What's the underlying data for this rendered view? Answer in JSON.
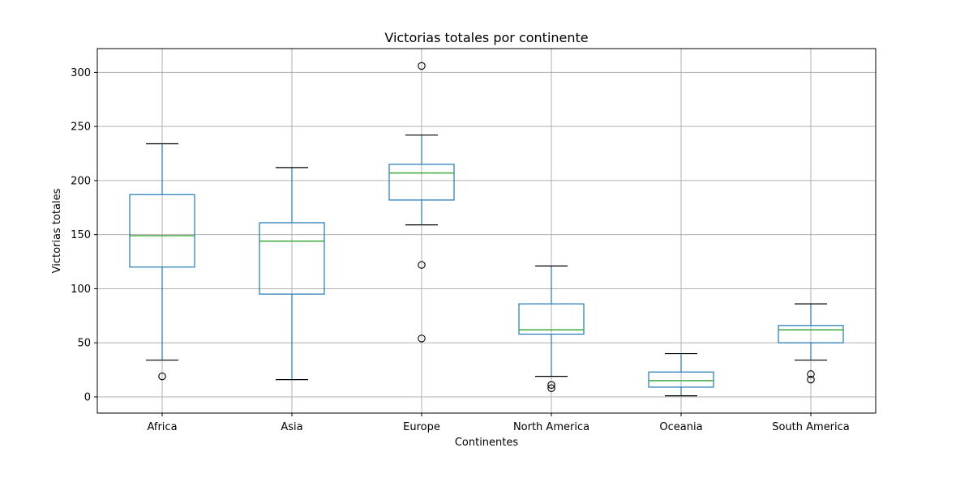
{
  "chart_data": {
    "type": "box",
    "title": "Victorias totales por continente",
    "xlabel": "Continentes",
    "ylabel": "Victorias totales",
    "ylim": [
      -15,
      322
    ],
    "yticks": [
      0,
      50,
      100,
      150,
      200,
      250,
      300
    ],
    "grid": true,
    "categories": [
      "Africa",
      "Asia",
      "Europe",
      "North America",
      "Oceania",
      "South America"
    ],
    "boxes": [
      {
        "category": "Africa",
        "whisker_low": 34,
        "q1": 120,
        "median": 149,
        "q3": 187,
        "whisker_high": 234,
        "fliers": [
          19
        ]
      },
      {
        "category": "Asia",
        "whisker_low": 16,
        "q1": 95,
        "median": 144,
        "q3": 161,
        "whisker_high": 212,
        "fliers": []
      },
      {
        "category": "Europe",
        "whisker_low": 159,
        "q1": 182,
        "median": 207,
        "q3": 215,
        "whisker_high": 242,
        "fliers": [
          306,
          122,
          54
        ]
      },
      {
        "category": "North America",
        "whisker_low": 19,
        "q1": 58,
        "median": 62,
        "q3": 86,
        "whisker_high": 121,
        "fliers": [
          11,
          8
        ]
      },
      {
        "category": "Oceania",
        "whisker_low": 1,
        "q1": 9,
        "median": 15,
        "q3": 23,
        "whisker_high": 40,
        "fliers": []
      },
      {
        "category": "South America",
        "whisker_low": 34,
        "q1": 50,
        "median": 62,
        "q3": 66,
        "whisker_high": 86,
        "fliers": [
          21,
          16
        ]
      }
    ],
    "colors": {
      "box": "#1f77b4",
      "median": "#2ca02c",
      "cap": "#000000",
      "grid": "#b0b0b0"
    }
  }
}
